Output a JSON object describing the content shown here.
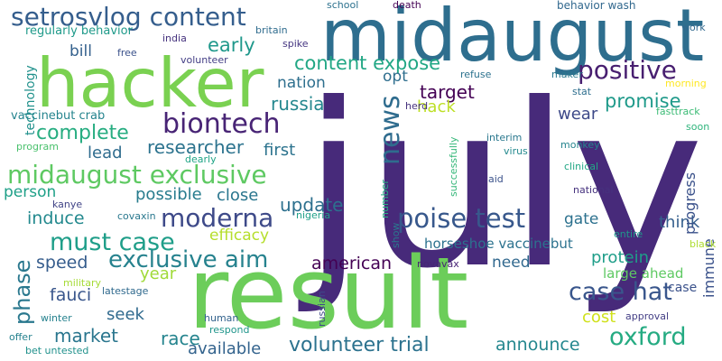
{
  "words": [
    {
      "text": "july",
      "color": "#472a7a",
      "rotated": false
    },
    {
      "text": "result",
      "color": "#6ccd5a",
      "rotated": false
    },
    {
      "text": "midaugust",
      "color": "#2e6e8e",
      "rotated": false
    },
    {
      "text": "hacker",
      "color": "#7ad151",
      "rotated": false
    },
    {
      "text": "setrosvlog content",
      "color": "#355e8d",
      "rotated": false
    },
    {
      "text": "midaugust exclusive",
      "color": "#5ec962",
      "rotated": false
    },
    {
      "text": "poise test",
      "color": "#38588c",
      "rotated": false
    },
    {
      "text": "biontech",
      "color": "#482475",
      "rotated": false
    },
    {
      "text": "moderna",
      "color": "#3e4a89",
      "rotated": false
    },
    {
      "text": "must case",
      "color": "#1f9e89",
      "rotated": false
    },
    {
      "text": "exclusive aim",
      "color": "#26828e",
      "rotated": false
    },
    {
      "text": "case hat",
      "color": "#39568c",
      "rotated": false
    },
    {
      "text": "oxford",
      "color": "#25ab82",
      "rotated": false
    },
    {
      "text": "positive",
      "color": "#481f70",
      "rotated": false
    },
    {
      "text": "content expose",
      "color": "#22a785",
      "rotated": false
    },
    {
      "text": "news",
      "color": "#2f6c8e",
      "rotated": true
    },
    {
      "text": "complete",
      "color": "#27ad81",
      "rotated": false
    },
    {
      "text": "phase",
      "color": "#2a788e",
      "rotated": true
    },
    {
      "text": "target",
      "color": "#440154",
      "rotated": false
    },
    {
      "text": "volunteer trial",
      "color": "#2c728e",
      "rotated": false
    },
    {
      "text": "early",
      "color": "#1f988b",
      "rotated": false
    },
    {
      "text": "promise",
      "color": "#1f9a8a",
      "rotated": false
    },
    {
      "text": "russia",
      "color": "#24878e",
      "rotated": false
    },
    {
      "text": "researcher",
      "color": "#2c738e",
      "rotated": false
    },
    {
      "text": "update",
      "color": "#2d708e",
      "rotated": false
    },
    {
      "text": "market",
      "color": "#2a768e",
      "rotated": false
    },
    {
      "text": "american",
      "color": "#440154",
      "rotated": false
    },
    {
      "text": "race",
      "color": "#25848e",
      "rotated": false
    },
    {
      "text": "announce",
      "color": "#24878e",
      "rotated": false
    },
    {
      "text": "speed",
      "color": "#365d8d",
      "rotated": false
    },
    {
      "text": "induce",
      "color": "#23898e",
      "rotated": false
    },
    {
      "text": "available",
      "color": "#33638d",
      "rotated": false
    },
    {
      "text": "fauci",
      "color": "#39568c",
      "rotated": false
    },
    {
      "text": "possible",
      "color": "#287c8e",
      "rotated": false
    },
    {
      "text": "efficacy",
      "color": "#b5de2b",
      "rotated": false
    },
    {
      "text": "seek",
      "color": "#306a8e",
      "rotated": false
    },
    {
      "text": "person",
      "color": "#1fa088",
      "rotated": false
    },
    {
      "text": "close",
      "color": "#2a768e",
      "rotated": false
    },
    {
      "text": "lead",
      "color": "#2f6c8e",
      "rotated": false
    },
    {
      "text": "first",
      "color": "#2c738e",
      "rotated": false
    },
    {
      "text": "hack",
      "color": "#bddf26",
      "rotated": false
    },
    {
      "text": "nation",
      "color": "#2e6f8e",
      "rotated": false
    },
    {
      "text": "opt",
      "color": "#2e6e8e",
      "rotated": false
    },
    {
      "text": "wear",
      "color": "#3e4a89",
      "rotated": false
    },
    {
      "text": "protein",
      "color": "#1f9e89",
      "rotated": false
    },
    {
      "text": "need",
      "color": "#31688e",
      "rotated": false
    },
    {
      "text": "think",
      "color": "#355f8d",
      "rotated": false
    },
    {
      "text": "gate",
      "color": "#2c718e",
      "rotated": false
    },
    {
      "text": "year",
      "color": "#a0da39",
      "rotated": false
    },
    {
      "text": "cost",
      "color": "#d0e11c",
      "rotated": false
    },
    {
      "text": "progress",
      "color": "#3b528b",
      "rotated": true
    },
    {
      "text": "immune",
      "color": "#3b528b",
      "rotated": true
    },
    {
      "text": "bill",
      "color": "#34618d",
      "rotated": false
    },
    {
      "text": "technology",
      "color": "#21918c",
      "rotated": true
    },
    {
      "text": "horseshoe vaccinebut",
      "color": "#2c728e",
      "rotated": false
    },
    {
      "text": "large ahead",
      "color": "#5ec962",
      "rotated": false
    },
    {
      "text": "case",
      "color": "#3b528b",
      "rotated": false
    },
    {
      "text": "regularly behavior",
      "color": "#1f9a8a",
      "rotated": false
    },
    {
      "text": "vaccinebut crab",
      "color": "#25848e",
      "rotated": false
    },
    {
      "text": "behavior wash",
      "color": "#31688e",
      "rotated": false
    },
    {
      "text": "school",
      "color": "#2c718e",
      "rotated": false
    },
    {
      "text": "death",
      "color": "#440154",
      "rotated": false
    },
    {
      "text": "britain",
      "color": "#2f6c8e",
      "rotated": false
    },
    {
      "text": "india",
      "color": "#46337e",
      "rotated": false
    },
    {
      "text": "spike",
      "color": "#453581",
      "rotated": false
    },
    {
      "text": "work",
      "color": "#31688e",
      "rotated": false
    },
    {
      "text": "free",
      "color": "#3b528b",
      "rotated": false
    },
    {
      "text": "volunteer",
      "color": "#433e85",
      "rotated": false
    },
    {
      "text": "maker",
      "color": "#2a788e",
      "rotated": false
    },
    {
      "text": "refuse",
      "color": "#2c728e",
      "rotated": false
    },
    {
      "text": "morning",
      "color": "#fde725",
      "rotated": false
    },
    {
      "text": "herd",
      "color": "#46327e",
      "rotated": false
    },
    {
      "text": "stat",
      "color": "#2e6e8e",
      "rotated": false
    },
    {
      "text": "fasttrack",
      "color": "#3bbb75",
      "rotated": false
    },
    {
      "text": "soon",
      "color": "#2fb47c",
      "rotated": false
    },
    {
      "text": "program",
      "color": "#4ac16d",
      "rotated": false
    },
    {
      "text": "dearly",
      "color": "#20a486",
      "rotated": false
    },
    {
      "text": "interim",
      "color": "#2a788e",
      "rotated": false
    },
    {
      "text": "virus",
      "color": "#23898e",
      "rotated": false
    },
    {
      "text": "monkey",
      "color": "#25848e",
      "rotated": false
    },
    {
      "text": "successfully",
      "color": "#35b779",
      "rotated": true
    },
    {
      "text": "clinical",
      "color": "#22a785",
      "rotated": false
    },
    {
      "text": "aid",
      "color": "#3b528b",
      "rotated": false
    },
    {
      "text": "national",
      "color": "#46327e",
      "rotated": false
    },
    {
      "text": "kanye",
      "color": "#414487",
      "rotated": false
    },
    {
      "text": "covaxin",
      "color": "#2a788e",
      "rotated": false
    },
    {
      "text": "nigeria",
      "color": "#1fa088",
      "rotated": false
    },
    {
      "text": "number",
      "color": "#27ad81",
      "rotated": true
    },
    {
      "text": "show",
      "color": "#2a788e",
      "rotated": true
    },
    {
      "text": "entire",
      "color": "#1f968b",
      "rotated": false
    },
    {
      "text": "black",
      "color": "#addc30",
      "rotated": false
    },
    {
      "text": "novavax",
      "color": "#482475",
      "rotated": false
    },
    {
      "text": "military",
      "color": "#a5db36",
      "rotated": false
    },
    {
      "text": "latestage",
      "color": "#306a8e",
      "rotated": false
    },
    {
      "text": "russian",
      "color": "#3e4a89",
      "rotated": true
    },
    {
      "text": "approval",
      "color": "#433e85",
      "rotated": false
    },
    {
      "text": "winter",
      "color": "#26828e",
      "rotated": false
    },
    {
      "text": "human",
      "color": "#33638d",
      "rotated": false
    },
    {
      "text": "respond",
      "color": "#1f958b",
      "rotated": false
    },
    {
      "text": "offer",
      "color": "#26828e",
      "rotated": false
    },
    {
      "text": "bet untested",
      "color": "#21918c",
      "rotated": false
    }
  ]
}
